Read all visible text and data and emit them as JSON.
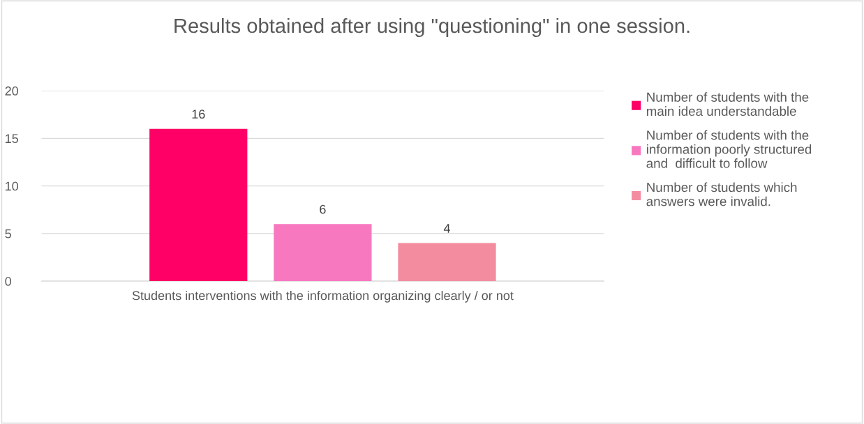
{
  "chart_data": {
    "type": "bar",
    "title": "Results obtained after using \"questioning\" in one session.",
    "categories": [
      "Students interventions with the information organizing clearly / or not"
    ],
    "series": [
      {
        "name": "Number of students with the\nmain idea understandable",
        "color": "#ff0066",
        "values": [
          16
        ]
      },
      {
        "name": "Number of students with the\ninformation poorly structured\nand  difficult to follow",
        "color": "#f878c0",
        "values": [
          6
        ]
      },
      {
        "name": "Number of students which\nanswers were invalid.",
        "color": "#f48ca0",
        "values": [
          4
        ]
      }
    ],
    "ylim": [
      0,
      20
    ],
    "yticks": [
      0,
      5,
      10,
      15,
      20
    ],
    "grid": "y",
    "legend": "top right",
    "data_labels": true
  }
}
